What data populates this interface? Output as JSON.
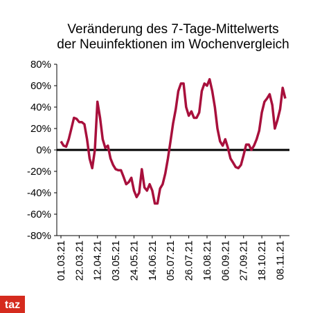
{
  "chart_data": {
    "type": "line",
    "title": [
      "Veränderung des 7-Tage-Mittelwerts",
      "der Neuinfektionen im Wochenvergleich"
    ],
    "logo": "taz",
    "categories": [
      "01.03.21",
      null,
      null,
      null,
      null,
      null,
      null,
      "22.03.21",
      null,
      null,
      null,
      null,
      null,
      null,
      "12.04.21",
      null,
      null,
      null,
      null,
      null,
      null,
      "03.05.21",
      null,
      null,
      null,
      null,
      null,
      null,
      "24.05.21",
      null,
      null,
      null,
      null,
      null,
      null,
      "14.06.21",
      null,
      null,
      null,
      null,
      null,
      null,
      "05.07.21",
      null,
      null,
      null,
      null,
      null,
      null,
      "26.07.21",
      null,
      null,
      null,
      null,
      null,
      null,
      "16.08.21",
      null,
      null,
      null,
      null,
      null,
      null,
      "06.09.21",
      null,
      null,
      null,
      null,
      null,
      null,
      "27.09.21",
      null,
      null,
      null,
      null,
      null,
      null,
      "18.10.21",
      null,
      null,
      null,
      null,
      null,
      null,
      "08.11.21",
      null,
      null
    ],
    "series": [
      {
        "color": "#a8103c",
        "values": [
          8,
          4,
          3,
          10,
          20,
          30,
          29,
          26,
          26,
          24,
          10,
          -8,
          -17,
          0,
          45,
          30,
          10,
          2,
          4,
          -8,
          -14,
          -18,
          -19,
          -19,
          -25,
          -32,
          -30,
          -26,
          -38,
          -44,
          -40,
          -18,
          -35,
          -38,
          -32,
          -38,
          -50,
          -50,
          -36,
          -32,
          -22,
          -8,
          8,
          25,
          38,
          55,
          62,
          62,
          40,
          32,
          36,
          30,
          30,
          35,
          55,
          62,
          60,
          66,
          55,
          40,
          20,
          8,
          4,
          10,
          2,
          -8,
          -12,
          -16,
          -17,
          -14,
          -5,
          5,
          5,
          0,
          4,
          10,
          18,
          35,
          45,
          48,
          52,
          42,
          20,
          28,
          38,
          58,
          48
        ]
      }
    ],
    "ylim": [
      -80,
      80
    ],
    "yticks": [
      {
        "value": -80,
        "label": "-80%"
      },
      {
        "value": -60,
        "label": "-60%"
      },
      {
        "value": -40,
        "label": "-40%"
      },
      {
        "value": -20,
        "label": "-20%"
      },
      {
        "value": 0,
        "label": "0%"
      },
      {
        "value": 20,
        "label": "20%"
      },
      {
        "value": 40,
        "label": "40%"
      },
      {
        "value": 60,
        "label": "60%"
      },
      {
        "value": 80,
        "label": "80%"
      }
    ],
    "grid": false
  }
}
